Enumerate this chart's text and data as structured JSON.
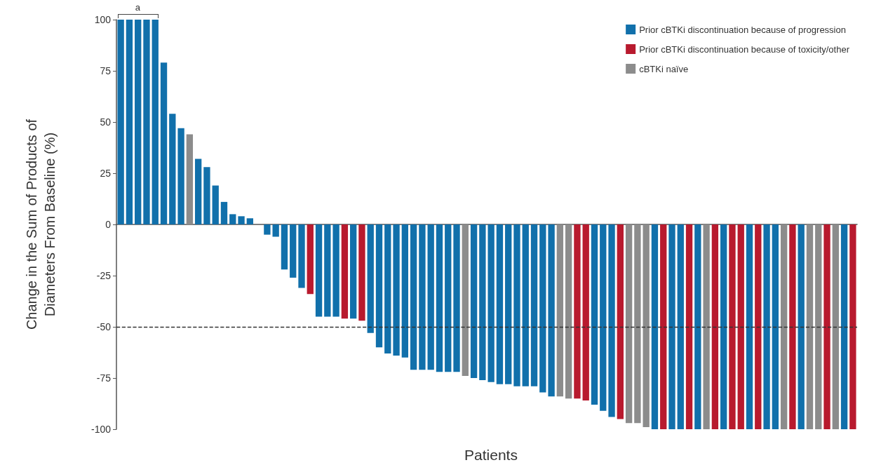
{
  "chart_data": {
    "type": "bar",
    "xlabel": "Patients",
    "ylabel": "Change in the Sum of Products of\nDiameters From Baseline (%)",
    "categories": [
      null,
      null,
      null,
      null,
      null,
      null,
      null,
      null,
      null,
      null,
      null,
      null,
      null,
      null,
      null,
      null,
      null,
      null,
      null,
      null,
      null,
      null,
      null,
      null,
      null,
      null,
      null,
      null,
      null,
      null,
      null,
      null,
      null,
      null,
      null,
      null,
      null,
      null,
      null,
      null,
      null,
      null,
      null,
      null,
      null,
      null,
      null,
      null,
      null,
      null,
      null,
      null,
      null,
      null,
      null,
      null,
      null,
      null,
      null,
      null,
      null,
      null,
      null,
      null,
      null,
      null,
      null,
      null,
      null,
      null,
      null,
      null,
      null,
      null,
      null,
      null,
      null,
      null,
      null,
      null,
      null,
      null,
      null,
      null,
      null,
      null
    ],
    "series": [
      {
        "name": "Prior cBTKi discontinuation because of progression",
        "color": "#1170ab",
        "values": [
          100,
          100,
          100,
          100,
          100,
          79,
          54,
          47,
          null,
          32,
          28,
          19,
          11,
          5,
          4,
          3,
          0,
          -5,
          -6,
          -22,
          -26,
          -31,
          null,
          -45,
          -45,
          -45,
          null,
          -46,
          null,
          -53,
          -60,
          -63,
          -64,
          -65,
          -71,
          -71,
          -71,
          -72,
          -72,
          -72,
          null,
          -75,
          -76,
          -77,
          -78,
          -78,
          -79,
          -79,
          -79,
          -82,
          -84,
          null,
          null,
          null,
          null,
          -88,
          -91,
          -94,
          null,
          null,
          null,
          null,
          -100,
          null,
          -100,
          -100,
          null,
          -100,
          null,
          null,
          -100,
          null,
          null,
          -100,
          null,
          -100,
          -100,
          null,
          null,
          -100,
          null,
          null,
          null,
          null,
          -100,
          null
        ]
      },
      {
        "name": "Prior cBTKi discontinuation because of toxicity/other",
        "color": "#b81a2e",
        "values": [
          null,
          null,
          null,
          null,
          null,
          null,
          null,
          null,
          null,
          null,
          null,
          null,
          null,
          null,
          null,
          null,
          null,
          null,
          null,
          null,
          null,
          null,
          -34,
          null,
          null,
          null,
          -46,
          null,
          -47,
          null,
          null,
          null,
          null,
          null,
          null,
          null,
          null,
          null,
          null,
          null,
          null,
          null,
          null,
          null,
          null,
          null,
          null,
          null,
          null,
          null,
          null,
          null,
          null,
          -85,
          -86,
          null,
          null,
          null,
          -95,
          null,
          null,
          null,
          null,
          -100,
          null,
          null,
          -100,
          null,
          null,
          -100,
          null,
          -100,
          -100,
          null,
          -100,
          null,
          null,
          null,
          -100,
          null,
          null,
          null,
          -100,
          null,
          null,
          -100
        ]
      },
      {
        "name": "cBTKi naïve",
        "color": "#8c8c8c",
        "values": [
          null,
          null,
          null,
          null,
          null,
          null,
          null,
          null,
          44,
          null,
          null,
          null,
          null,
          null,
          null,
          null,
          null,
          null,
          null,
          null,
          null,
          null,
          null,
          null,
          null,
          null,
          null,
          null,
          null,
          null,
          null,
          null,
          null,
          null,
          null,
          null,
          null,
          null,
          null,
          null,
          -74,
          null,
          null,
          null,
          null,
          null,
          null,
          null,
          null,
          null,
          null,
          -84,
          -85,
          null,
          null,
          null,
          null,
          null,
          null,
          -97,
          -97,
          -99,
          null,
          null,
          null,
          null,
          null,
          null,
          -100,
          null,
          null,
          null,
          null,
          null,
          null,
          null,
          null,
          -100,
          null,
          null,
          -100,
          -100,
          null,
          -100,
          null,
          null
        ]
      }
    ],
    "ylim": [
      -100,
      100
    ],
    "yticks": [
      -100,
      -75,
      -50,
      -25,
      0,
      25,
      50,
      75,
      100
    ],
    "ref_lines": [
      {
        "axis": "y",
        "value": -50,
        "color": "#333333",
        "line_style": "dashed"
      }
    ],
    "annotations": [
      {
        "text": "a",
        "y": 100
      }
    ],
    "legend": "top right",
    "grid": false
  }
}
